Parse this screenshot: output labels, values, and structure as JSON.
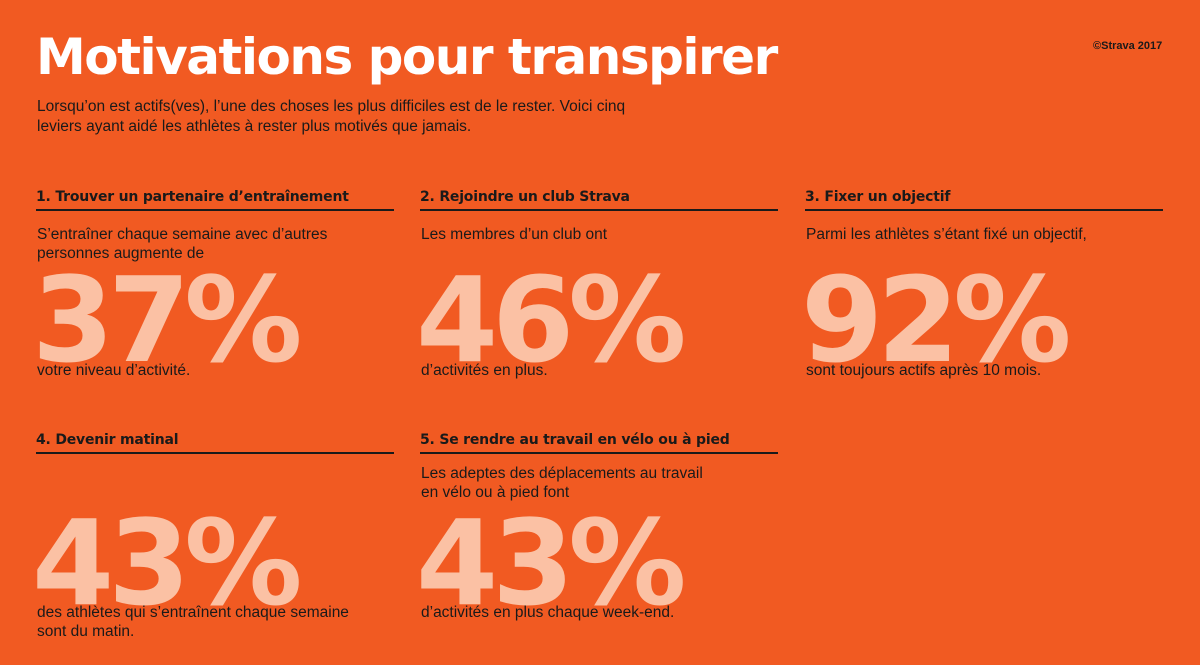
{
  "header": {
    "title": "Motivations pour transpirer",
    "copyright": "©Strava 2017",
    "intro": "Lorsqu’on est actifs(ves), l’une des choses les plus difficiles est de le rester. Voici cinq leviers ayant aidé les athlètes à rester plus motivés que jamais."
  },
  "sections": [
    {
      "heading": "1. Trouver un partenaire d’entraînement",
      "pre": "S’entraîner chaque semaine avec d’autres personnes augmente de",
      "value": "37%",
      "post": "votre niveau d’activité."
    },
    {
      "heading": "2. Rejoindre un club Strava",
      "pre": "Les membres d’un club ont",
      "value": "46%",
      "post": "d’activités en plus."
    },
    {
      "heading": "3. Fixer un objectif",
      "pre": "Parmi les athlètes s’étant fixé un objectif,",
      "value": "92%",
      "post": "sont toujours actifs après 10 mois."
    },
    {
      "heading": "4. Devenir matinal",
      "pre": "",
      "value": "43%",
      "post": "des athlètes qui s’entraînent chaque semaine sont du matin."
    },
    {
      "heading": "5. Se rendre au travail en vélo ou à pied",
      "pre": "Les adeptes des déplacements au travail en vélo ou à pied font",
      "value": "43%",
      "post": "d’activités en plus chaque week-end."
    }
  ],
  "colors": {
    "background": "#F15A22",
    "title": "#FFFFFF",
    "text": "#1A1A1A",
    "big_number": "#FBC1A4"
  }
}
